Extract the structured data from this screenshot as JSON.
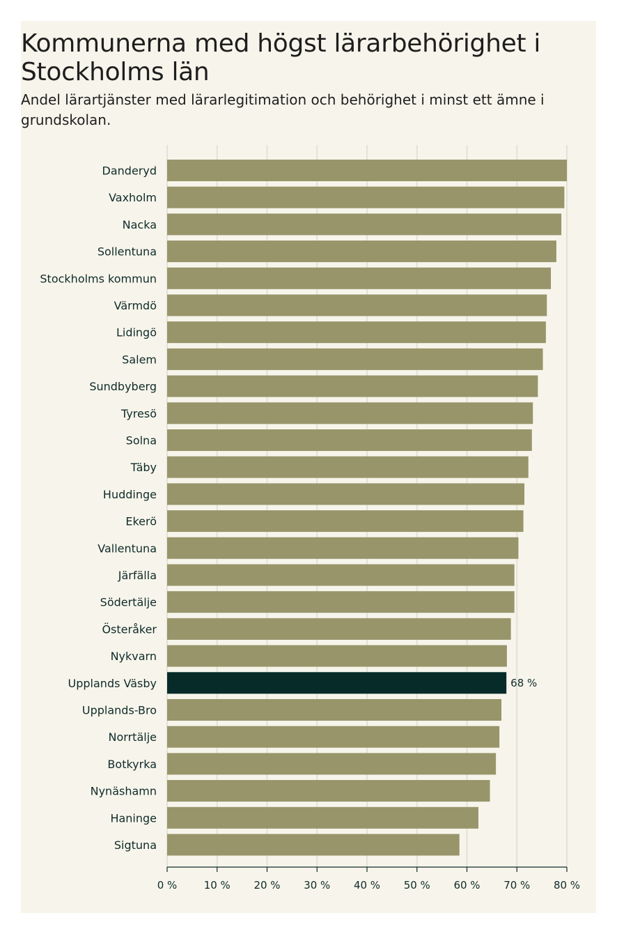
{
  "header": {
    "title": "Kommunerna med högst lärarbehörighet i Stockholms län",
    "subtitle": "Andel lärartjänster med lärarlegitimation och behörighet i minst ett ämne i grundskolan."
  },
  "colors": {
    "background": "#f7f5eb",
    "bar": "#98956b",
    "highlight": "#062b29",
    "grid": "#e4e1d5",
    "text": "#0f2a2a"
  },
  "chart_data": {
    "type": "bar",
    "orientation": "horizontal",
    "title": "Kommunerna med högst lärarbehörighet i Stockholms län",
    "subtitle": "Andel lärartjänster med lärarlegitimation och behörighet i minst ett ämne i grundskolan.",
    "xlabel": "",
    "ylabel": "",
    "xlim": [
      0,
      80
    ],
    "grid": true,
    "ticks": [
      0,
      10,
      20,
      30,
      40,
      50,
      60,
      70,
      80
    ],
    "tick_labels": [
      "0 %",
      "10 %",
      "20 %",
      "30 %",
      "40 %",
      "50 %",
      "60 %",
      "70 %",
      "80 %"
    ],
    "categories": [
      "Danderyd",
      "Vaxholm",
      "Nacka",
      "Sollentuna",
      "Stockholms kommun",
      "Värmdö",
      "Lidingö",
      "Salem",
      "Sundbyberg",
      "Tyresö",
      "Solna",
      "Täby",
      "Huddinge",
      "Ekerö",
      "Vallentuna",
      "Järfälla",
      "Södertälje",
      "Österåker",
      "Nykvarn",
      "Upplands Väsby",
      "Upplands-Bro",
      "Norrtälje",
      "Botkyrka",
      "Nynäshamn",
      "Haninge",
      "Sigtuna"
    ],
    "values": [
      80.0,
      79.5,
      78.9,
      77.9,
      76.8,
      76.0,
      75.8,
      75.2,
      74.2,
      73.2,
      73.0,
      72.3,
      71.5,
      71.3,
      70.3,
      69.5,
      69.5,
      68.8,
      68.0,
      67.9,
      66.9,
      66.5,
      65.8,
      64.6,
      62.3,
      58.5
    ],
    "highlight": "Upplands Väsby",
    "highlight_label": "68 %"
  }
}
